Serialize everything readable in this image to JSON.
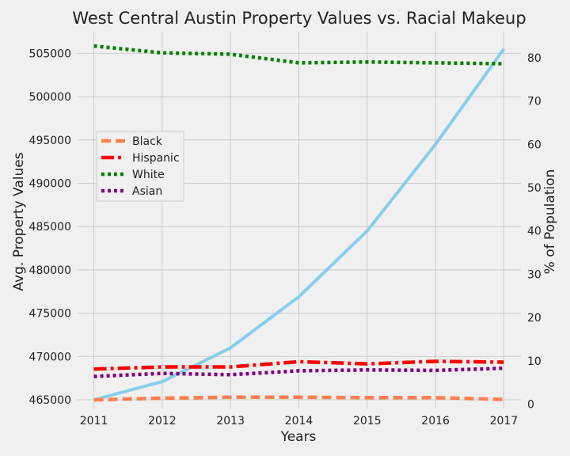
{
  "chart_data": {
    "type": "line",
    "title": "West Central Austin Property Values vs. Racial Makeup",
    "xlabel": "Years",
    "ylabel_left": "Avg. Property Values",
    "ylabel_right": "% of Population",
    "x": [
      2011,
      2012,
      2013,
      2014,
      2015,
      2016,
      2017
    ],
    "xticks": [
      "2011",
      "2012",
      "2013",
      "2014",
      "2015",
      "2016",
      "2017"
    ],
    "ylim_left": [
      464000,
      507500
    ],
    "yticks_left": [
      "465000",
      "470000",
      "475000",
      "480000",
      "485000",
      "490000",
      "495000",
      "500000",
      "505000"
    ],
    "ylim_right": [
      -1,
      86
    ],
    "yticks_right": [
      "0",
      "10",
      "20",
      "30",
      "40",
      "50",
      "60",
      "70",
      "80"
    ],
    "grid": true,
    "legend_position": "center-left",
    "property_series": {
      "axis": "left",
      "color": "#87ceeb",
      "values": [
        465000,
        467100,
        471000,
        476900,
        484500,
        494500,
        505500
      ]
    },
    "series": [
      {
        "name": "Black",
        "axis": "right",
        "color": "#ff7f50",
        "style": "dashed",
        "values": [
          1.0,
          1.4,
          1.6,
          1.6,
          1.5,
          1.5,
          1.1
        ]
      },
      {
        "name": "Hispanic",
        "axis": "right",
        "color": "#ff0000",
        "style": "dashdot",
        "values": [
          8.1,
          8.6,
          8.6,
          9.8,
          9.3,
          9.9,
          9.7
        ]
      },
      {
        "name": "White",
        "axis": "right",
        "color": "#008000",
        "style": "dotted",
        "values": [
          82.7,
          81.1,
          80.8,
          78.8,
          79.0,
          78.8,
          78.6
        ]
      },
      {
        "name": "Asian",
        "axis": "right",
        "color": "#800080",
        "style": "dotted",
        "values": [
          6.4,
          7.1,
          6.8,
          7.7,
          7.9,
          7.8,
          8.3
        ]
      }
    ]
  }
}
